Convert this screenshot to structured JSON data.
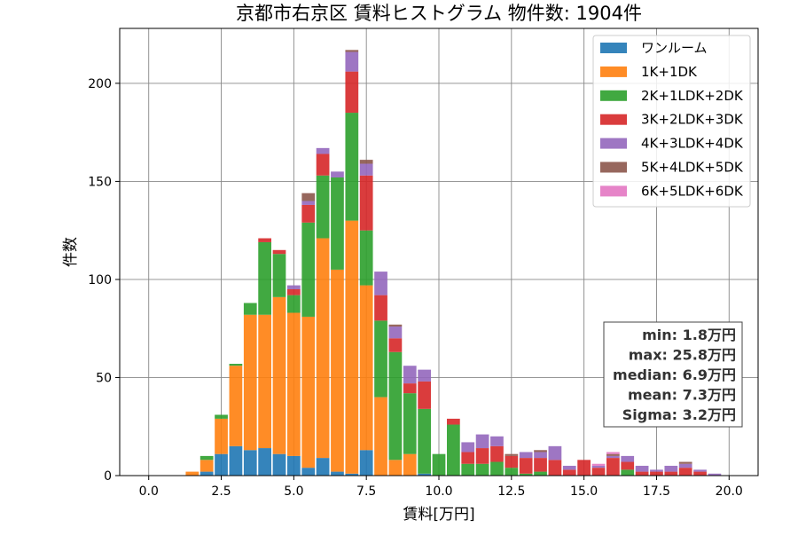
{
  "chart_data": {
    "type": "bar",
    "stacked": true,
    "title": "京都市右京区 賃料ヒストグラム 物件数: 1904件",
    "xlabel": "賃料[万円]",
    "ylabel": "件数",
    "xlim": [
      -1.0,
      21.0
    ],
    "ylim": [
      0,
      228
    ],
    "bin_width": 0.5,
    "grid": true,
    "legend_position": "top-right",
    "x_ticks": [
      0.0,
      2.5,
      5.0,
      7.5,
      10.0,
      12.5,
      15.0,
      17.5,
      20.0
    ],
    "x_tick_labels": [
      "0.0",
      "2.5",
      "5.0",
      "7.5",
      "10.0",
      "12.5",
      "15.0",
      "17.5",
      "20.0"
    ],
    "y_ticks": [
      0,
      50,
      100,
      150,
      200
    ],
    "y_tick_labels": [
      "0",
      "50",
      "100",
      "150",
      "200"
    ],
    "bins": [
      1.5,
      2.0,
      2.5,
      3.0,
      3.5,
      4.0,
      4.5,
      5.0,
      5.5,
      6.0,
      6.5,
      7.0,
      7.5,
      8.0,
      8.5,
      9.0,
      9.5,
      10.0,
      10.5,
      11.0,
      11.5,
      12.0,
      12.5,
      13.0,
      13.5,
      14.0,
      14.5,
      15.0,
      15.5,
      16.0,
      16.5,
      17.0,
      17.5,
      18.0,
      18.5,
      19.0,
      19.5
    ],
    "series": [
      {
        "name": "ワンルーム",
        "color": "#1f77b4",
        "values": [
          0,
          2,
          11,
          15,
          13,
          14,
          11,
          10,
          4,
          9,
          2,
          1,
          13,
          0,
          0,
          0,
          1,
          0,
          0,
          0,
          0,
          0,
          0,
          0,
          0,
          0,
          0,
          0,
          0,
          0,
          0,
          0,
          0,
          0,
          0,
          0,
          0
        ]
      },
      {
        "name": "1K+1DK",
        "color": "#ff7f0e",
        "values": [
          2,
          6,
          18,
          41,
          69,
          68,
          80,
          73,
          77,
          112,
          103,
          129,
          84,
          40,
          8,
          11,
          0,
          0,
          0,
          0,
          0,
          0,
          0,
          0,
          0,
          0,
          0,
          0,
          0,
          0,
          0,
          0,
          0,
          0,
          0,
          0,
          0
        ]
      },
      {
        "name": "2K+1LDK+2DK",
        "color": "#2ca02c",
        "values": [
          0,
          2,
          2,
          1,
          6,
          37,
          22,
          9,
          48,
          32,
          47,
          55,
          28,
          39,
          55,
          31,
          33,
          11,
          26,
          6,
          6,
          7,
          4,
          1,
          2,
          0,
          0,
          0,
          0,
          0,
          3,
          0,
          0,
          0,
          0,
          0,
          0
        ]
      },
      {
        "name": "3K+2LDK+3DK",
        "color": "#d62728",
        "values": [
          0,
          0,
          0,
          0,
          0,
          2,
          2,
          3,
          9,
          11,
          0,
          21,
          28,
          13,
          7,
          5,
          14,
          0,
          3,
          6,
          8,
          8,
          6,
          8,
          7,
          8,
          3,
          8,
          4,
          9,
          4,
          2,
          2,
          2,
          4,
          2,
          0
        ]
      },
      {
        "name": "4K+3LDK+4DK",
        "color": "#9467bd",
        "values": [
          0,
          0,
          0,
          0,
          0,
          0,
          0,
          2,
          2,
          3,
          3,
          10,
          6,
          12,
          6,
          9,
          6,
          0,
          0,
          5,
          7,
          5,
          0,
          3,
          3,
          7,
          2,
          0,
          1,
          1,
          3,
          3,
          1,
          3,
          2,
          1,
          1
        ]
      },
      {
        "name": "5K+4LDK+5DK",
        "color": "#8c564b",
        "values": [
          0,
          0,
          0,
          0,
          0,
          0,
          0,
          0,
          4,
          0,
          0,
          1,
          2,
          0,
          1,
          0,
          0,
          0,
          0,
          0,
          0,
          0,
          1,
          0,
          1,
          0,
          0,
          0,
          0,
          1,
          0,
          0,
          0,
          0,
          1,
          0,
          0
        ]
      },
      {
        "name": "6K+5LDK+6DK",
        "color": "#e377c2",
        "values": [
          0,
          0,
          0,
          0,
          0,
          0,
          0,
          0,
          0,
          0,
          0,
          0,
          0,
          0,
          0,
          0,
          0,
          0,
          0,
          0,
          0,
          0,
          0,
          0,
          0,
          0,
          0,
          0,
          1,
          1,
          0,
          0,
          0,
          0,
          0,
          0,
          0
        ]
      }
    ],
    "annotation": [
      "min: 1.8万円",
      "max: 25.8万円",
      "median: 6.9万円",
      "mean: 7.3万円",
      "Sigma: 3.2万円"
    ]
  }
}
